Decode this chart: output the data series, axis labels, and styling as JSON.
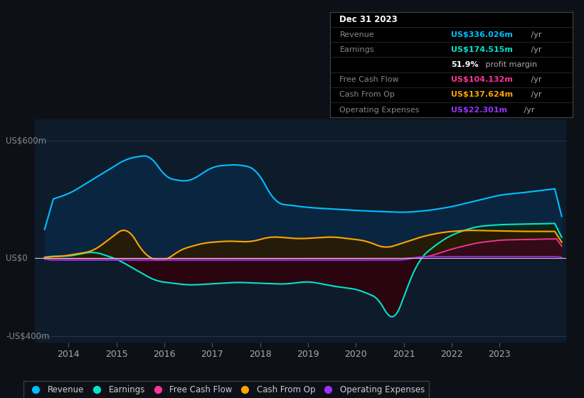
{
  "bg_color": "#0d1117",
  "plot_bg_color": "#0d1b2a",
  "colors": {
    "revenue": "#00bfff",
    "earnings": "#00e5cc",
    "free_cash_flow": "#ff3399",
    "cash_from_op": "#ffa500",
    "operating_expenses": "#9933ff",
    "revenue_fill": "#0a2540",
    "earnings_fill_neg": "#2a0510",
    "earnings_fill_pos": "#0a2518"
  },
  "ylabel_top": "US$600m",
  "ylabel_zero": "US$0",
  "ylabel_bottom": "-US$400m",
  "xmin": 2013.3,
  "xmax": 2024.4,
  "ymin": -430,
  "ymax": 710,
  "xticks": [
    2014,
    2015,
    2016,
    2017,
    2018,
    2019,
    2020,
    2021,
    2022,
    2023
  ],
  "legend": [
    {
      "label": "Revenue",
      "color": "#00bfff"
    },
    {
      "label": "Earnings",
      "color": "#00e5cc"
    },
    {
      "label": "Free Cash Flow",
      "color": "#ff3399"
    },
    {
      "label": "Cash From Op",
      "color": "#ffa500"
    },
    {
      "label": "Operating Expenses",
      "color": "#9933ff"
    }
  ],
  "info_box": {
    "rows": [
      {
        "label": "Dec 31 2023",
        "value": "",
        "value_color": "#ffffff",
        "label_color": "#ffffff",
        "header": true
      },
      {
        "label": "Revenue",
        "value": "US$336.026m",
        "value_color": "#00bfff",
        "label_color": "#888888"
      },
      {
        "label": "Earnings",
        "value": "US$174.515m",
        "value_color": "#00e5cc",
        "label_color": "#888888"
      },
      {
        "label": "",
        "value": "51.9% profit margin",
        "value_color": "#cccccc",
        "label_color": "#888888"
      },
      {
        "label": "Free Cash Flow",
        "value": "US$104.132m",
        "value_color": "#ff3399",
        "label_color": "#888888"
      },
      {
        "label": "Cash From Op",
        "value": "US$137.624m",
        "value_color": "#ffa500",
        "label_color": "#888888"
      },
      {
        "label": "Operating Expenses",
        "value": "US$22.301m",
        "value_color": "#9933ff",
        "label_color": "#888888"
      }
    ]
  }
}
